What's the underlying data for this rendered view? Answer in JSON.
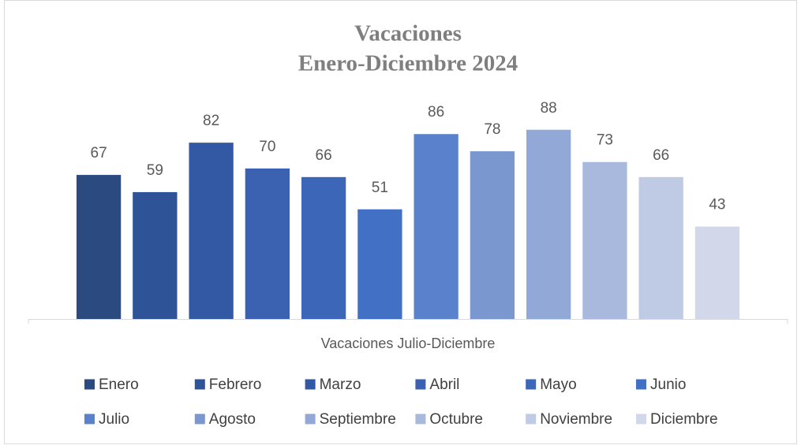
{
  "chart_data": {
    "type": "bar",
    "title": "Vacaciones",
    "subtitle": "Enero-Diciembre 2024",
    "categories": [
      "Vacaciones Julio-Diciembre"
    ],
    "ylim": [
      0,
      100
    ],
    "series": [
      {
        "name": "Enero",
        "color": "#2a4a80",
        "values": [
          67
        ]
      },
      {
        "name": "Febrero",
        "color": "#2e5397",
        "values": [
          59
        ]
      },
      {
        "name": "Marzo",
        "color": "#3358a4",
        "values": [
          82
        ]
      },
      {
        "name": "Abril",
        "color": "#3a62b0",
        "values": [
          70
        ]
      },
      {
        "name": "Mayo",
        "color": "#3c66b8",
        "values": [
          66
        ]
      },
      {
        "name": "Junio",
        "color": "#4170c4",
        "values": [
          51
        ]
      },
      {
        "name": "Julio",
        "color": "#5a82cc",
        "values": [
          86
        ]
      },
      {
        "name": "Agosto",
        "color": "#7b97d0",
        "values": [
          78
        ]
      },
      {
        "name": "Septiembre",
        "color": "#92a8d6",
        "values": [
          88
        ]
      },
      {
        "name": "Octubre",
        "color": "#a9b9de",
        "values": [
          73
        ]
      },
      {
        "name": "Noviembre",
        "color": "#bfcae5",
        "values": [
          66
        ]
      },
      {
        "name": "Diciembre",
        "color": "#d2d8ea",
        "values": [
          43
        ]
      }
    ]
  }
}
